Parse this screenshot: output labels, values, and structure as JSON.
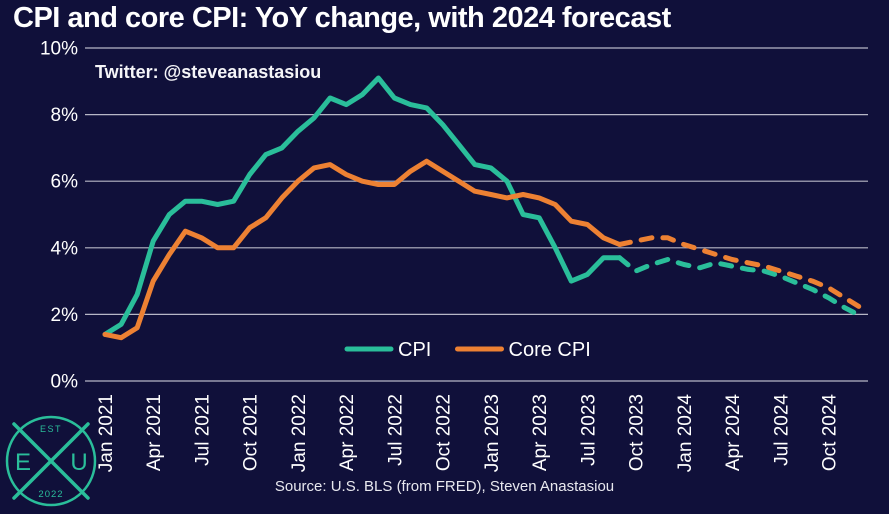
{
  "header": {
    "title": "CPI and core CPI: YoY change, with 2024 forecast",
    "subtitle": "Twitter: @steveanastasiou"
  },
  "footer": {
    "source": "Source: U.S. BLS (from FRED), Steven Anastasiou"
  },
  "logo": {
    "left_letter": "E",
    "right_letter": "U",
    "top_text": "EST",
    "bottom_text": "2022"
  },
  "colors": {
    "background": "#10103a",
    "cpi_line": "#2abe9a",
    "core_cpi_line": "#ed8133",
    "gridline": "#b7b7c6",
    "text": "#ffffff",
    "logo": "#2abe9a"
  },
  "chart_data": {
    "type": "line",
    "title": "CPI and core CPI: YoY change, with 2024 forecast",
    "xlabel": "",
    "ylabel": "",
    "ylim": [
      0,
      10
    ],
    "yticks": [
      0,
      2,
      4,
      6,
      8,
      10
    ],
    "ytick_suffix": "%",
    "grid": "horizontal",
    "legend_position": "bottom-center-inside",
    "legend_entries": [
      "CPI",
      "Core CPI"
    ],
    "x_tick_every": 3,
    "x_tick_labels_shown": [
      "Jan 2021",
      "Apr 2021",
      "Jul 2021",
      "Oct 2021",
      "Jan 2022",
      "Apr 2022",
      "Jul 2022",
      "Oct 2022",
      "Jan 2023",
      "Apr 2023",
      "Jul 2023",
      "Oct 2023",
      "Jan 2024",
      "Apr 2024",
      "Jul 2024",
      "Oct 2024"
    ],
    "x": [
      "Jan 2021",
      "Feb 2021",
      "Mar 2021",
      "Apr 2021",
      "May 2021",
      "Jun 2021",
      "Jul 2021",
      "Aug 2021",
      "Sep 2021",
      "Oct 2021",
      "Nov 2021",
      "Dec 2021",
      "Jan 2022",
      "Feb 2022",
      "Mar 2022",
      "Apr 2022",
      "May 2022",
      "Jun 2022",
      "Jul 2022",
      "Aug 2022",
      "Sep 2022",
      "Oct 2022",
      "Nov 2022",
      "Dec 2022",
      "Jan 2023",
      "Feb 2023",
      "Mar 2023",
      "Apr 2023",
      "May 2023",
      "Jun 2023",
      "Jul 2023",
      "Aug 2023",
      "Sep 2023",
      "Oct 2023",
      "Nov 2023",
      "Dec 2023",
      "Jan 2024",
      "Feb 2024",
      "Mar 2024",
      "Apr 2024",
      "May 2024",
      "Jun 2024",
      "Jul 2024",
      "Aug 2024",
      "Sep 2024",
      "Oct 2024",
      "Nov 2024",
      "Dec 2024"
    ],
    "forecast_start_index": 33,
    "forecast_style": "dashed",
    "series": [
      {
        "name": "CPI",
        "color": "#2abe9a",
        "values": [
          1.4,
          1.7,
          2.6,
          4.2,
          5.0,
          5.4,
          5.4,
          5.3,
          5.4,
          6.2,
          6.8,
          7.0,
          7.5,
          7.9,
          8.5,
          8.3,
          8.6,
          9.1,
          8.5,
          8.3,
          8.2,
          7.7,
          7.1,
          6.5,
          6.4,
          6.0,
          5.0,
          4.9,
          4.0,
          3.0,
          3.2,
          3.7,
          3.7,
          3.3,
          3.5,
          3.65,
          3.5,
          3.4,
          3.55,
          3.45,
          3.35,
          3.3,
          3.15,
          2.95,
          2.75,
          2.5,
          2.2,
          1.95
        ]
      },
      {
        "name": "Core CPI",
        "color": "#ed8133",
        "values": [
          1.4,
          1.3,
          1.6,
          3.0,
          3.8,
          4.5,
          4.3,
          4.0,
          4.0,
          4.6,
          4.9,
          5.5,
          6.0,
          6.4,
          6.5,
          6.2,
          6.0,
          5.9,
          5.9,
          6.3,
          6.6,
          6.3,
          6.0,
          5.7,
          5.6,
          5.5,
          5.6,
          5.5,
          5.3,
          4.8,
          4.7,
          4.3,
          4.1,
          4.2,
          4.3,
          4.3,
          4.1,
          3.95,
          3.8,
          3.65,
          3.55,
          3.45,
          3.3,
          3.15,
          3.0,
          2.8,
          2.5,
          2.2
        ]
      }
    ]
  }
}
